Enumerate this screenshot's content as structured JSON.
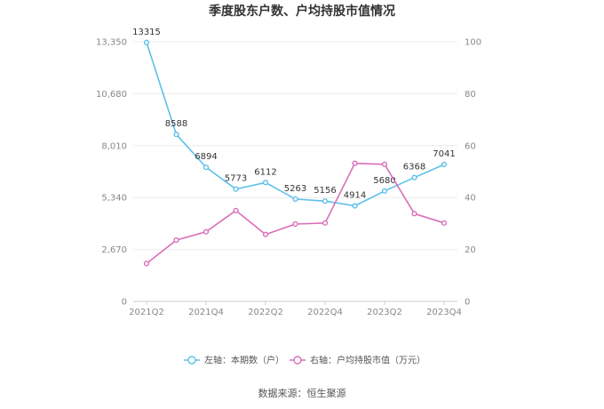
{
  "chart_data": {
    "type": "line",
    "title": "季度股东户数、户均持股市值情况",
    "categories": [
      "2021Q2",
      "2021Q3",
      "2021Q4",
      "2022Q1",
      "2022Q2",
      "2022Q3",
      "2022Q4",
      "2023Q1",
      "2023Q2",
      "2023Q3",
      "2023Q4"
    ],
    "x_tick_labels": [
      "2021Q2",
      "2021Q4",
      "2022Q2",
      "2022Q4",
      "2023Q2",
      "2023Q4"
    ],
    "left_axis": {
      "ticks": [
        "0",
        "2,670",
        "5,340",
        "8,010",
        "10,680",
        "13,350"
      ],
      "ylim": [
        0,
        13350
      ]
    },
    "right_axis": {
      "ticks": [
        "0",
        "20",
        "40",
        "60",
        "80",
        "100"
      ],
      "ylim": [
        0,
        100
      ]
    },
    "grid": true,
    "legend_position": "bottom",
    "series": [
      {
        "name": "左轴：本期数（户）",
        "axis": "left",
        "color": "#5bc0eb",
        "values": [
          13315,
          8588,
          6894,
          5773,
          6112,
          5263,
          5156,
          4914,
          5680,
          6368,
          7041
        ],
        "labels": [
          "13315",
          "8588",
          "6894",
          "5773",
          "6112",
          "5263",
          "5156",
          "4914",
          "5680",
          "6368",
          "7041"
        ]
      },
      {
        "name": "右轴：户均持股市值（万元）",
        "axis": "right",
        "color": "#d96eb9",
        "values": [
          14.6,
          23.6,
          26.8,
          35.0,
          25.8,
          29.8,
          30.2,
          53.2,
          52.8,
          33.8,
          30.2
        ]
      }
    ],
    "source": "数据来源：恒生聚源"
  }
}
